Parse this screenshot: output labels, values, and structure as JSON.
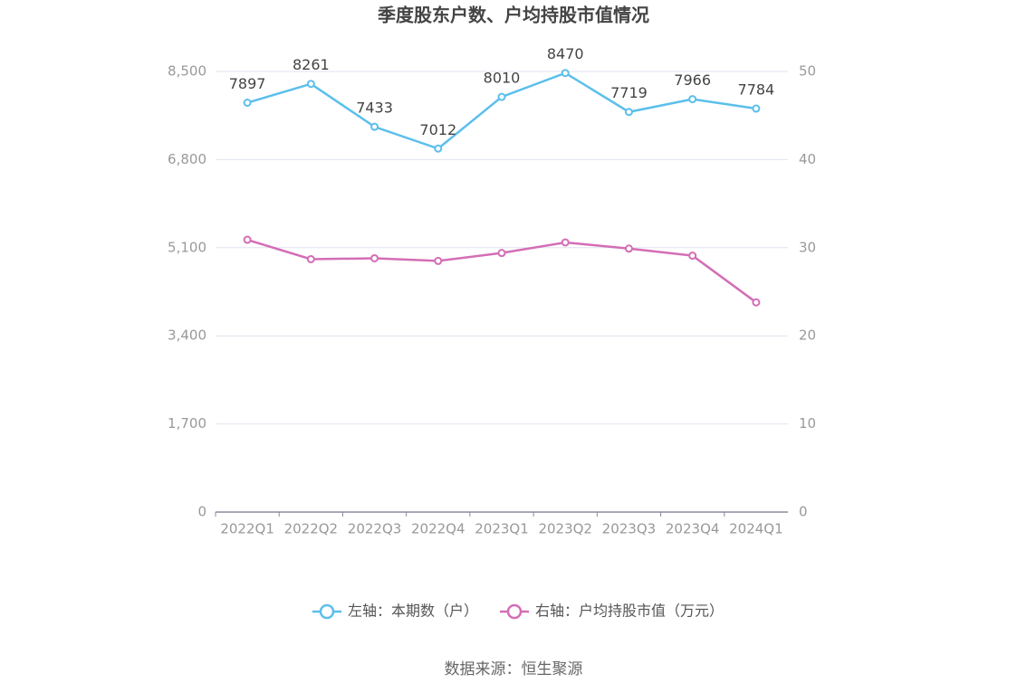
{
  "chart_data": {
    "type": "line",
    "title": "季度股东户数、户均持股市值情况",
    "categories": [
      "2022Q1",
      "2022Q2",
      "2022Q3",
      "2022Q4",
      "2023Q1",
      "2023Q2",
      "2023Q3",
      "2023Q4",
      "2024Q1"
    ],
    "series": [
      {
        "name": "左轴：本期数（户）",
        "color": "#5bbfec",
        "axis": "y",
        "show_labels": true,
        "values": [
          7897,
          8261,
          7433,
          7012,
          8010,
          8470,
          7719,
          7966,
          7784
        ]
      },
      {
        "name": "右轴：户均持股市值（万元）",
        "color": "#d36eb6",
        "axis": "y2",
        "show_labels": false,
        "values": [
          30.9,
          28.7,
          28.8,
          28.5,
          29.4,
          30.6,
          29.9,
          29.1,
          23.8
        ]
      }
    ],
    "ylim": [
      0,
      8500
    ],
    "yticks": [
      0,
      {
        "value": 1700,
        "label": "1,700"
      },
      {
        "value": 3400,
        "label": "3,400"
      },
      {
        "value": 5100,
        "label": "5,100"
      },
      {
        "value": 6800,
        "label": "6,800"
      },
      {
        "value": 8500,
        "label": "8,500"
      }
    ],
    "y2lim": [
      0,
      50
    ],
    "y2ticks": [
      0,
      10,
      20,
      30,
      40,
      50
    ],
    "grid": true,
    "legend": "bottom",
    "source": "数据来源：恒生聚源"
  }
}
